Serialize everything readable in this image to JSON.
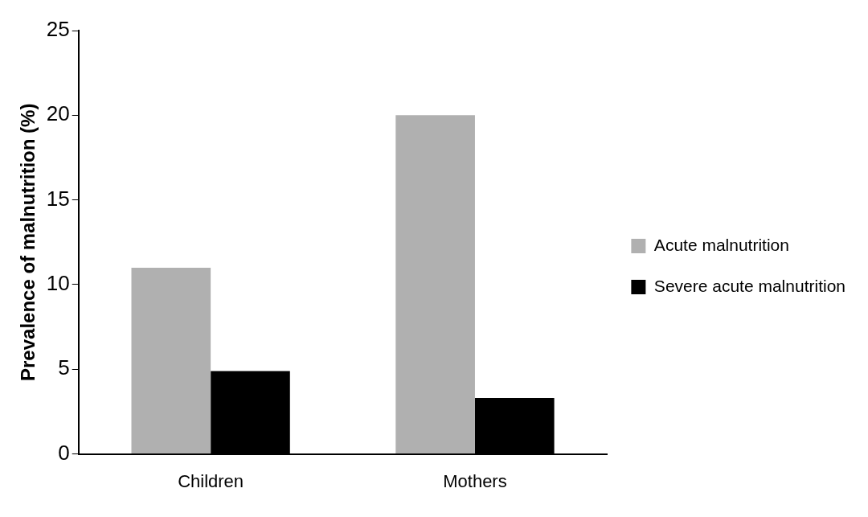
{
  "chart_data": {
    "type": "bar",
    "ylabel": "Prevalence of malnutrition (%)",
    "categories": [
      "Children",
      "Mothers"
    ],
    "series": [
      {
        "name": "Acute malnutrition",
        "color": "#b0b0b0",
        "values": [
          11,
          20
        ]
      },
      {
        "name": "Severe acute malnutrition",
        "color": "#000000",
        "values": [
          4.9,
          3.3
        ]
      }
    ],
    "ylim": [
      0,
      25
    ],
    "yticks": [
      0,
      5,
      10,
      15,
      20,
      25
    ],
    "grid": false,
    "legend": "right"
  }
}
